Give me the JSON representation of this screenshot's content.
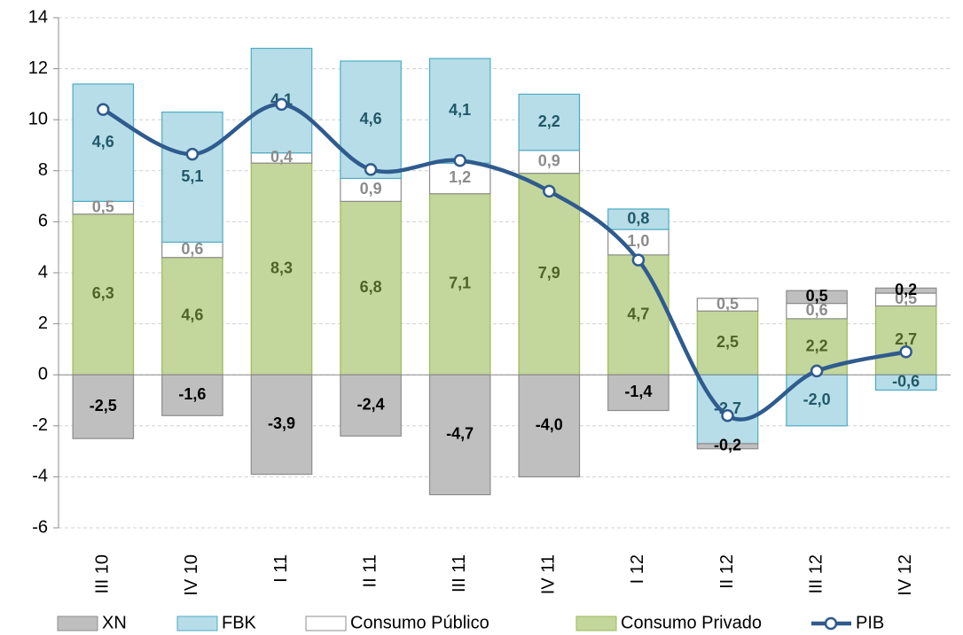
{
  "chart_data": {
    "type": "bar",
    "stacked": true,
    "categories": [
      "III 10",
      "IV 10",
      "I 11",
      "II 11",
      "III 11",
      "IV 11",
      "I 12",
      "II 12",
      "III 12",
      "IV 12"
    ],
    "series": [
      {
        "name": "XN",
        "color": "#bfbfbf",
        "values": [
          -2.5,
          -1.6,
          -3.9,
          -2.4,
          -4.7,
          -4.0,
          -1.4,
          -0.2,
          0.5,
          0.2
        ],
        "value_labels": [
          "-2,5",
          "-1,6",
          "-3,9",
          "-2,4",
          "-4,7",
          "-4,0",
          "-1,4",
          "-0,2",
          "0,5",
          "0,2"
        ]
      },
      {
        "name": "FBK",
        "color": "#b7dde8",
        "values": [
          4.6,
          5.1,
          4.1,
          4.6,
          4.1,
          2.2,
          0.8,
          -2.7,
          -2.0,
          -0.6
        ],
        "value_labels": [
          "4,6",
          "5,1",
          "4,1",
          "4,6",
          "4,1",
          "2,2",
          "0,8",
          "-2,7",
          "-2,0",
          "-0,6"
        ]
      },
      {
        "name": "Consumo Público",
        "color": "#ffffff",
        "values": [
          0.5,
          0.6,
          0.4,
          0.9,
          1.2,
          0.9,
          1.0,
          0.5,
          0.6,
          0.5
        ],
        "value_labels": [
          "0,5",
          "0,6",
          "0,4",
          "0,9",
          "1,2",
          "0,9",
          "1,0",
          "0,5",
          "0,6",
          "0,5"
        ]
      },
      {
        "name": "Consumo Privado",
        "color": "#c3d69b",
        "values": [
          6.3,
          4.6,
          8.3,
          6.8,
          7.1,
          7.9,
          4.7,
          2.5,
          2.2,
          2.7
        ],
        "value_labels": [
          "6,3",
          "4,6",
          "8,3",
          "6,8",
          "7,1",
          "7,9",
          "4,7",
          "2,5",
          "2,2",
          "2,7"
        ]
      },
      {
        "name": "PIB",
        "type": "line",
        "color": "#2f5b8e",
        "values": [
          10.4,
          8.65,
          10.6,
          8.05,
          8.4,
          7.2,
          4.5,
          -1.6,
          0.15,
          0.9
        ]
      }
    ],
    "ylim": [
      -6,
      14
    ],
    "yticks": [
      -6,
      -4,
      -2,
      0,
      2,
      4,
      6,
      8,
      10,
      12,
      14
    ],
    "grid": true,
    "legend": "bottom"
  }
}
